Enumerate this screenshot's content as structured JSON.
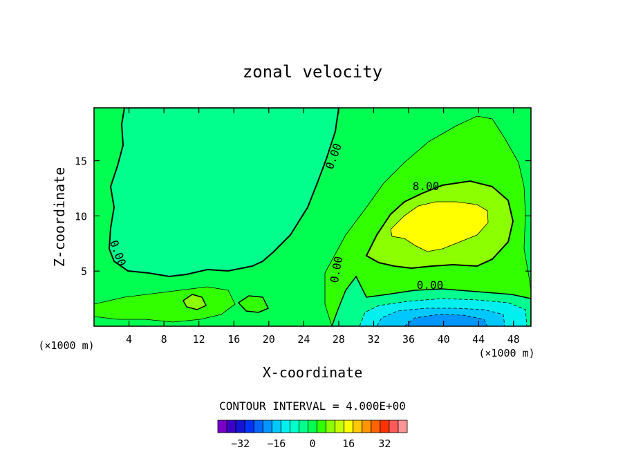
{
  "chart_data": {
    "type": "heatmap",
    "title": "zonal velocity",
    "xlabel": "X-coordinate",
    "ylabel": "Z-coordinate",
    "x_unit_left": "(×1000 m)",
    "x_unit_right": "(×1000 m)",
    "xlim": [
      0,
      50
    ],
    "ylim": [
      0,
      19.8
    ],
    "x_ticks": [
      4,
      8,
      12,
      16,
      20,
      24,
      28,
      32,
      36,
      40,
      44,
      48
    ],
    "y_ticks": [
      5,
      10,
      15
    ],
    "contour_interval_text": "CONTOUR INTERVAL = 4.000E+00",
    "contour_labels": [
      {
        "text": "0.00",
        "x": 27,
        "z": 16.5
      },
      {
        "text": "8.00",
        "x": 38.5,
        "z": 12.8
      },
      {
        "text": "0.00",
        "x": 36.8,
        "z": 3.7
      },
      {
        "text": "0.00",
        "x": 2.5,
        "z": 6.8
      },
      {
        "text": "0.00",
        "x": 27.7,
        "z": 5.2
      }
    ],
    "colorbar": {
      "levels": [
        -38,
        -34,
        -30,
        -26,
        -22,
        -18,
        -14,
        -10,
        -6,
        -2,
        2,
        6,
        10,
        14,
        18,
        22,
        26,
        30,
        34
      ],
      "colors": [
        "#7a00c8",
        "#3c00c8",
        "#1414d2",
        "#0032ff",
        "#0064ff",
        "#0096ff",
        "#00c8ff",
        "#00f0f0",
        "#00ffc8",
        "#00ff8c",
        "#00ff50",
        "#32ff00",
        "#8cff00",
        "#c8ff00",
        "#ffff00",
        "#ffc800",
        "#ff9600",
        "#ff6400",
        "#ff3200",
        "#ff5a5a",
        "#ff9696"
      ],
      "tick_labels": [
        "−32",
        "−16",
        "0",
        "16",
        "32"
      ],
      "tick_values": [
        -32,
        -16,
        0,
        16,
        32
      ]
    },
    "regions": [
      {
        "value": 0,
        "color": "#00ff50",
        "description": "background near-zero flow"
      },
      {
        "value": -4,
        "color": "#00ff8c",
        "description": "weak negative flow upper-left"
      },
      {
        "value": 4,
        "color": "#32ff00",
        "description": "weak positive flow right"
      },
      {
        "value": 8,
        "color": "#8cff00",
        "description": "positive jet core"
      },
      {
        "value": 14,
        "color": "#ffff00",
        "description": "maximum positive jet"
      },
      {
        "value": -12,
        "color": "#00c8ff",
        "description": "negative near-surface flow"
      },
      {
        "value": -16,
        "color": "#0096ff",
        "description": "strongest negative flow"
      }
    ]
  }
}
